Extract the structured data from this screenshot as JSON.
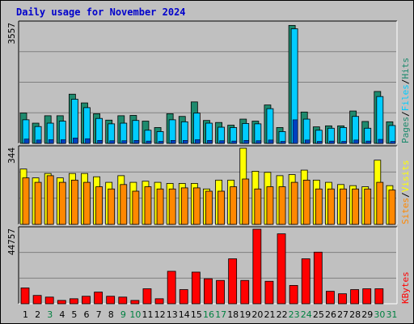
{
  "title": "Daily usage for November 2024",
  "colors": {
    "pages": "#1e8a6e",
    "files": "#00ccff",
    "hits": "#1e8a6e",
    "sites": "#ff8800",
    "visits": "#ffff00",
    "kbytes": "#ff0000",
    "weekday_label": "#000000",
    "weekend_label": "#008040"
  },
  "chart_data": [
    {
      "type": "bar",
      "name": "hits-files-pages",
      "ymax": 3557,
      "ymax_label": "3557",
      "right_label": [
        "Pages",
        "/",
        "Files",
        "/",
        "Hits"
      ],
      "categories": [
        "1",
        "2",
        "3",
        "4",
        "5",
        "6",
        "7",
        "8",
        "9",
        "10",
        "11",
        "12",
        "13",
        "14",
        "15",
        "16",
        "17",
        "18",
        "19",
        "20",
        "21",
        "22",
        "23",
        "24",
        "25",
        "26",
        "27",
        "28",
        "29",
        "30",
        "31"
      ],
      "series": [
        {
          "name": "Hits",
          "values": [
            900,
            600,
            820,
            820,
            1460,
            1200,
            880,
            690,
            820,
            830,
            660,
            470,
            880,
            800,
            1230,
            680,
            620,
            540,
            720,
            660,
            1140,
            470,
            3500,
            930,
            490,
            520,
            520,
            960,
            650,
            1540,
            640
          ]
        },
        {
          "name": "Files",
          "values": [
            700,
            500,
            600,
            660,
            1310,
            1060,
            740,
            580,
            600,
            680,
            390,
            350,
            700,
            640,
            900,
            600,
            480,
            470,
            590,
            580,
            1030,
            350,
            3400,
            720,
            390,
            450,
            470,
            800,
            450,
            1390,
            530
          ]
        },
        {
          "name": "Pages",
          "values": [
            130,
            100,
            110,
            110,
            160,
            140,
            90,
            80,
            80,
            90,
            70,
            60,
            90,
            90,
            110,
            90,
            80,
            70,
            90,
            80,
            100,
            60,
            700,
            100,
            60,
            70,
            60,
            100,
            70,
            120,
            60
          ]
        }
      ],
      "weekend_days": [
        3,
        9,
        10,
        16,
        17,
        23,
        24,
        30,
        31
      ]
    },
    {
      "type": "bar",
      "name": "visits-sites",
      "ymax": 344,
      "ymax_label": "344",
      "right_label": [
        "Sites",
        "/",
        "Visits"
      ],
      "categories": [
        "1",
        "2",
        "3",
        "4",
        "5",
        "6",
        "7",
        "8",
        "9",
        "10",
        "11",
        "12",
        "13",
        "14",
        "15",
        "16",
        "17",
        "18",
        "19",
        "20",
        "21",
        "22",
        "23",
        "24",
        "25",
        "26",
        "27",
        "28",
        "29",
        "30",
        "31"
      ],
      "series": [
        {
          "name": "Visits",
          "values": [
            250,
            210,
            230,
            210,
            230,
            230,
            215,
            190,
            220,
            190,
            195,
            190,
            185,
            185,
            185,
            160,
            200,
            200,
            344,
            240,
            235,
            220,
            225,
            245,
            200,
            190,
            180,
            175,
            170,
            290,
            175
          ]
        },
        {
          "name": "Sites",
          "values": [
            210,
            190,
            220,
            190,
            200,
            190,
            170,
            160,
            180,
            150,
            170,
            160,
            160,
            165,
            165,
            150,
            150,
            170,
            205,
            160,
            170,
            170,
            190,
            200,
            160,
            160,
            160,
            160,
            160,
            190,
            155
          ]
        }
      ]
    },
    {
      "type": "bar",
      "name": "kbytes",
      "ymax": 44757,
      "ymax_label": "44757",
      "right_label": [
        "KBytes"
      ],
      "categories": [
        "1",
        "2",
        "3",
        "4",
        "5",
        "6",
        "7",
        "8",
        "9",
        "10",
        "11",
        "12",
        "13",
        "14",
        "15",
        "16",
        "17",
        "18",
        "19",
        "20",
        "21",
        "22",
        "23",
        "24",
        "25",
        "26",
        "27",
        "28",
        "29",
        "30",
        "31"
      ],
      "series": [
        {
          "name": "KBytes",
          "values": [
            9500,
            5000,
            4000,
            2000,
            3000,
            4500,
            7000,
            4500,
            4000,
            2000,
            9000,
            3000,
            19500,
            8500,
            19000,
            15000,
            14000,
            27000,
            14000,
            44757,
            13500,
            42000,
            11000,
            27000,
            31000,
            7500,
            6000,
            8500,
            9000,
            9000,
            0
          ]
        }
      ]
    }
  ]
}
